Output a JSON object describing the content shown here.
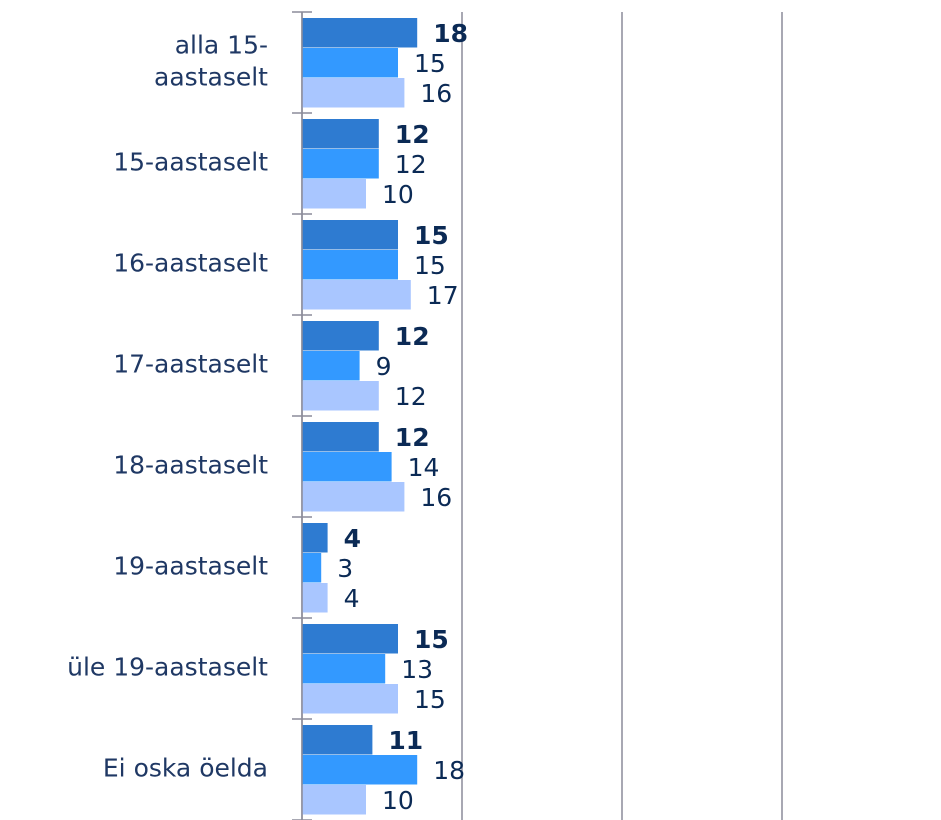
{
  "chart_data": {
    "type": "bar",
    "orientation": "horizontal",
    "categories": [
      "alla 15-aastaselt",
      "15-aastaselt",
      "16-aastaselt",
      "17-aastaselt",
      "18-aastaselt",
      "19-aastaselt",
      "üle 19-aastaselt",
      "Ei oska öelda"
    ],
    "series": [
      {
        "color": "#2e7bd1",
        "values": [
          18,
          12,
          15,
          12,
          12,
          4,
          15,
          11
        ]
      },
      {
        "color": "#3399ff",
        "values": [
          15,
          12,
          15,
          9,
          14,
          3,
          13,
          18
        ]
      },
      {
        "color": "#a9c6ff",
        "values": [
          16,
          10,
          17,
          12,
          16,
          4,
          15,
          10
        ]
      }
    ],
    "xlim": [
      0,
      100
    ],
    "xticks": [
      0,
      25,
      50,
      75
    ],
    "grid": true
  }
}
